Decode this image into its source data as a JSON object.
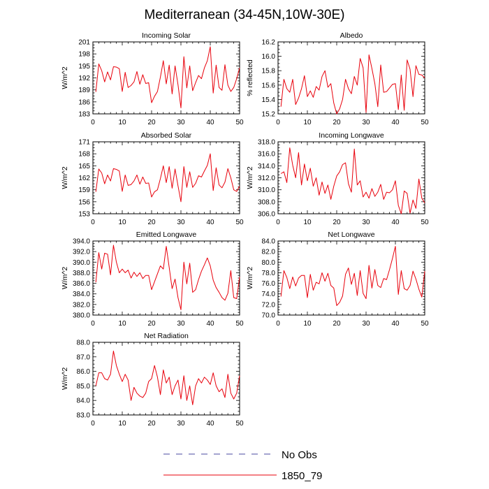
{
  "figure": {
    "title": "Mediterranean (34-45N,10W-30E)"
  },
  "legend": {
    "placement": "bottom-center",
    "entries": [
      {
        "label": "No Obs",
        "color": "#4a4aa0",
        "style": "dashed"
      },
      {
        "label": "1850_79",
        "color": "#e8000b",
        "style": "solid"
      }
    ]
  },
  "chart_data": [
    {
      "type": "line",
      "title": "Incoming Solar",
      "ylabel": "W/m^2",
      "xlim": [
        0,
        50
      ],
      "xticks": [
        0,
        10,
        20,
        30,
        40,
        50
      ],
      "ylim": [
        183,
        201
      ],
      "yticks": [
        "183",
        "186",
        "189",
        "192",
        "195",
        "198",
        "201"
      ],
      "color": "#e8000b",
      "series": [
        {
          "values": [
            188.5,
            195.5,
            193.8,
            191.0,
            193.5,
            191.5,
            194.8,
            194.7,
            194.3,
            188.6,
            193.4,
            189.6,
            190.1,
            191.0,
            193.6,
            190.4,
            192.8,
            190.6,
            190.8,
            185.8,
            187.4,
            188.6,
            192.2,
            196.3,
            190.5,
            195.2,
            188.0,
            195.0,
            190.3,
            184.5,
            197.3,
            189.5,
            195.0,
            188.8,
            190.8,
            192.6,
            191.8,
            194.5,
            196.3,
            199.8,
            188.2,
            195.2,
            189.6,
            188.9,
            195.3,
            190.2,
            188.6,
            189.6,
            191.8,
            194.5
          ]
        }
      ]
    },
    {
      "type": "line",
      "title": "Albedo",
      "ylabel": "% reflected",
      "xlim": [
        0,
        50
      ],
      "xticks": [
        0,
        10,
        20,
        30,
        40,
        50
      ],
      "ylim": [
        15.2,
        16.2
      ],
      "yticks": [
        "15.2",
        "15.4",
        "15.6",
        "15.8",
        "16.0",
        "16.2"
      ],
      "color": "#e8000b",
      "series": [
        {
          "values": [
            15.3,
            15.68,
            15.55,
            15.5,
            15.68,
            15.33,
            15.42,
            15.55,
            15.73,
            15.44,
            15.52,
            15.43,
            15.58,
            15.53,
            15.72,
            15.8,
            15.57,
            15.62,
            15.35,
            15.2,
            15.27,
            15.4,
            15.68,
            15.55,
            15.48,
            15.72,
            15.6,
            15.97,
            15.84,
            15.22,
            16.02,
            15.83,
            15.62,
            15.3,
            15.88,
            15.5,
            15.51,
            15.56,
            15.61,
            15.62,
            15.26,
            15.74,
            15.25,
            15.95,
            15.82,
            15.44,
            15.87,
            15.75,
            15.74,
            15.7
          ]
        }
      ]
    },
    {
      "type": "line",
      "title": "Absorbed Solar",
      "ylabel": "W/m^2",
      "xlim": [
        0,
        50
      ],
      "xticks": [
        0,
        10,
        20,
        30,
        40,
        50
      ],
      "ylim": [
        153,
        171
      ],
      "yticks": [
        "153",
        "156",
        "159",
        "162",
        "165",
        "168",
        "171"
      ],
      "color": "#e8000b",
      "series": [
        {
          "values": [
            158.5,
            164.2,
            163.2,
            160.5,
            162.7,
            161.2,
            164.3,
            164.1,
            163.7,
            158.6,
            162.7,
            160.1,
            160.3,
            161.2,
            162.7,
            160.4,
            162.2,
            160.6,
            160.7,
            157.2,
            158.5,
            159.0,
            161.8,
            165.0,
            160.8,
            164.8,
            159.4,
            164.2,
            160.0,
            156.0,
            164.8,
            159.6,
            163.5,
            159.6,
            160.6,
            162.5,
            162.2,
            163.7,
            165.1,
            168.0,
            158.8,
            164.5,
            160.2,
            159.5,
            160.9,
            164.3,
            162.0,
            159.0,
            158.6,
            159.9
          ]
        }
      ]
    },
    {
      "type": "line",
      "title": "Incoming Longwave",
      "ylabel": "W/m^2",
      "xlim": [
        0,
        50
      ],
      "xticks": [
        0,
        10,
        20,
        30,
        40,
        50
      ],
      "ylim": [
        306.0,
        318.0
      ],
      "yticks": [
        "306.0",
        "308.0",
        "310.0",
        "312.0",
        "314.0",
        "316.0",
        "318.0"
      ],
      "color": "#e8000b",
      "series": [
        {
          "values": [
            312.7,
            313.0,
            311.2,
            317.0,
            314.1,
            312.0,
            316.2,
            310.8,
            314.3,
            311.5,
            313.6,
            310.6,
            312.0,
            309.1,
            311.3,
            309.4,
            310.8,
            308.4,
            310.6,
            312.3,
            313.0,
            314.2,
            314.5,
            311.0,
            309.6,
            316.8,
            310.8,
            311.5,
            308.8,
            309.6,
            308.6,
            310.2,
            308.9,
            309.6,
            310.9,
            308.4,
            309.6,
            309.5,
            310.0,
            311.5,
            307.4,
            306.0,
            309.8,
            309.4,
            306.1,
            308.3,
            306.9,
            311.8,
            308.6,
            307.8
          ]
        }
      ]
    },
    {
      "type": "line",
      "title": "Emitted Longwave",
      "ylabel": "W/m^2",
      "xlim": [
        0,
        50
      ],
      "xticks": [
        0,
        10,
        20,
        30,
        40,
        50
      ],
      "ylim": [
        380.0,
        394.0
      ],
      "yticks": [
        "380.0",
        "382.0",
        "384.0",
        "386.0",
        "388.0",
        "390.0",
        "392.0",
        "394.0"
      ],
      "color": "#e8000b",
      "series": [
        {
          "values": [
            386.2,
            391.8,
            388.7,
            391.7,
            391.5,
            387.6,
            393.2,
            390.0,
            388.0,
            388.7,
            388.0,
            388.5,
            387.0,
            388.1,
            387.3,
            388.0,
            386.9,
            387.5,
            387.5,
            384.8,
            386.3,
            387.8,
            389.3,
            388.7,
            393.0,
            389.0,
            385.0,
            386.8,
            383.3,
            381.0,
            390.0,
            385.9,
            389.8,
            384.3,
            384.8,
            386.7,
            388.3,
            389.5,
            390.8,
            389.3,
            386.6,
            385.2,
            384.3,
            383.3,
            382.8,
            384.1,
            388.4,
            383.3,
            383.1,
            387.2
          ]
        }
      ]
    },
    {
      "type": "line",
      "title": "Net Longwave",
      "ylabel": "W/m^2",
      "xlim": [
        0,
        50
      ],
      "xticks": [
        0,
        10,
        20,
        30,
        40,
        50
      ],
      "ylim": [
        70.0,
        84.0
      ],
      "yticks": [
        "70.0",
        "72.0",
        "74.0",
        "76.0",
        "78.0",
        "80.0",
        "82.0",
        "84.0"
      ],
      "color": "#e8000b",
      "series": [
        {
          "values": [
            73.5,
            78.4,
            77.1,
            75.0,
            77.2,
            75.5,
            77.0,
            77.5,
            77.5,
            73.3,
            77.7,
            74.7,
            76.2,
            75.9,
            78.0,
            76.4,
            77.9,
            75.6,
            75.1,
            71.8,
            72.4,
            73.6,
            77.7,
            78.9,
            75.8,
            77.9,
            73.7,
            78.4,
            74.1,
            73.1,
            79.4,
            75.1,
            78.6,
            75.6,
            75.2,
            76.9,
            76.7,
            78.6,
            80.7,
            83.0,
            73.9,
            78.4,
            75.0,
            74.7,
            75.6,
            78.3,
            76.8,
            74.9,
            73.4,
            78.3
          ]
        }
      ]
    },
    {
      "type": "line",
      "title": "Net Radiation",
      "ylabel": "W/m^2",
      "xlim": [
        0,
        50
      ],
      "xticks": [
        0,
        10,
        20,
        30,
        40,
        50
      ],
      "ylim": [
        83.0,
        88.0
      ],
      "yticks": [
        "83.0",
        "84.0",
        "85.0",
        "86.0",
        "87.0",
        "88.0"
      ],
      "color": "#e8000b",
      "series": [
        {
          "values": [
            85.0,
            85.9,
            85.9,
            85.5,
            85.4,
            85.8,
            87.4,
            86.4,
            85.8,
            85.3,
            85.8,
            85.4,
            84.0,
            84.9,
            84.5,
            84.3,
            84.2,
            84.5,
            85.3,
            85.5,
            86.4,
            85.6,
            84.4,
            86.1,
            85.2,
            85.6,
            84.4,
            85.0,
            85.4,
            84.1,
            85.7,
            84.0,
            85.0,
            83.7,
            85.0,
            85.5,
            85.2,
            85.6,
            85.4,
            85.1,
            85.9,
            85.0,
            84.6,
            84.8,
            84.2,
            85.8,
            84.5,
            84.1,
            84.5,
            85.7
          ]
        }
      ]
    }
  ]
}
